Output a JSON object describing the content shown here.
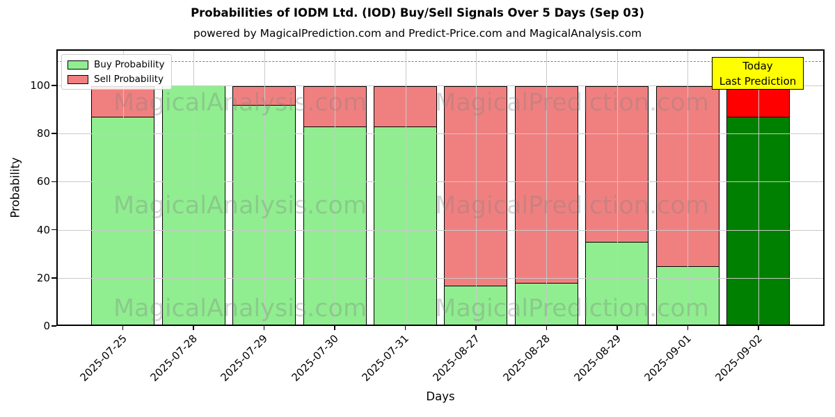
{
  "title": "Probabilities of IODM Ltd. (IOD) Buy/Sell Signals Over 5 Days (Sep 03)",
  "subtitle": "powered by MagicalPrediction.com and Predict-Price.com and MagicalAnalysis.com",
  "legend": [
    {
      "label": "Buy Probability",
      "color": "#90ee90"
    },
    {
      "label": "Sell Probability",
      "color": "#f08080"
    }
  ],
  "annotation": {
    "line1": "Today",
    "line2": "Last Prediction",
    "bg_color": "#ffff00"
  },
  "watermarks": {
    "left_text": "MagicalAnalysis.com",
    "right_text": "MagicalPrediction.com",
    "color": "rgba(128,128,128,0.32)"
  },
  "axes": {
    "xlabel": "Days",
    "ylabel": "Probability",
    "yticks": [
      0,
      20,
      40,
      60,
      80,
      100
    ],
    "ylim": [
      0,
      115
    ],
    "dashed_line_y": 110
  },
  "colors": {
    "buy": "#90ee90",
    "sell": "#f08080",
    "today_buy": "#008000",
    "today_sell": "#ff0000",
    "bar_edge": "#000000"
  },
  "chart_data": {
    "type": "bar",
    "stacked": true,
    "title": "Probabilities of IODM Ltd. (IOD) Buy/Sell Signals Over 5 Days (Sep 03)",
    "xlabel": "Days",
    "ylabel": "Probability",
    "ylim": [
      0,
      115
    ],
    "grid": true,
    "legend_position": "upper left",
    "threshold_dashed_line": 110,
    "categories": [
      "2025-07-25",
      "2025-07-28",
      "2025-07-29",
      "2025-07-30",
      "2025-07-31",
      "2025-08-27",
      "2025-08-28",
      "2025-08-29",
      "2025-09-01",
      "2025-09-02"
    ],
    "series": [
      {
        "name": "Buy Probability",
        "values": [
          87,
          100,
          92,
          83,
          83,
          17,
          18,
          35,
          25,
          87
        ]
      },
      {
        "name": "Sell Probability",
        "values": [
          13,
          0,
          8,
          17,
          17,
          83,
          82,
          65,
          75,
          13
        ]
      }
    ],
    "today_index": 9,
    "today_annotation": "Today Last Prediction"
  }
}
